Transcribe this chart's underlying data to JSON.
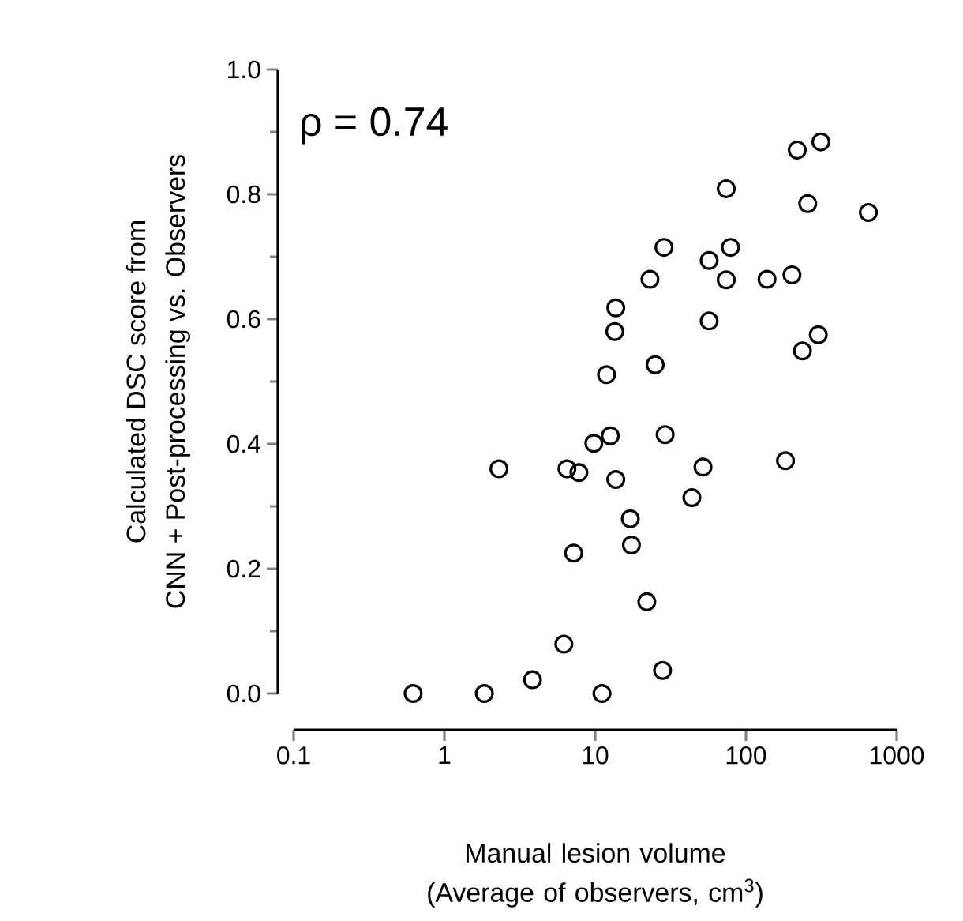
{
  "chart_data": {
    "type": "scatter",
    "xlabel": "Manual lesion volume (Average of observers, cm$^{3}$)",
    "ylabel": "Calculated DSC score from CNN + Post-processing vs. Observers",
    "annotations": [
      "ρ = 0.74"
    ],
    "log": "x",
    "xlim": [
      0.1,
      1000
    ],
    "xticks": [
      0.1,
      1,
      10,
      100,
      1000
    ],
    "ylim": [
      0,
      1
    ],
    "yticks": [
      {
        "value": 0,
        "label": "0.0"
      },
      0.2,
      0.4,
      0.6,
      0.8,
      {
        "value": 1,
        "label": "1.0"
      }
    ],
    "grid": false,
    "marker": "circle",
    "series": [
      {
        "color": "#000000",
        "x": [
          0.62,
          1.84,
          3.84,
          6.2,
          11.1,
          28,
          22,
          7.2,
          17.4,
          17.1,
          43.8,
          51.9,
          183,
          2.3,
          6.5,
          7.8,
          13.7,
          9.8,
          12.6,
          29.1,
          11.9,
          25,
          13.5,
          13.7,
          23.1,
          28.6,
          57,
          79,
          74,
          57,
          138,
          202,
          74,
          219,
          314,
          257,
          649,
          237,
          302
        ],
        "values": [
          0.0,
          0.0,
          0.022,
          0.079,
          0.0,
          0.037,
          0.147,
          0.225,
          0.238,
          0.28,
          0.314,
          0.363,
          0.373,
          0.36,
          0.36,
          0.354,
          0.343,
          0.401,
          0.413,
          0.415,
          0.511,
          0.527,
          0.58,
          0.618,
          0.664,
          0.715,
          0.694,
          0.715,
          0.663,
          0.597,
          0.664,
          0.671,
          0.809,
          0.871,
          0.884,
          0.785,
          0.771,
          0.549,
          0.575
        ]
      }
    ]
  }
}
